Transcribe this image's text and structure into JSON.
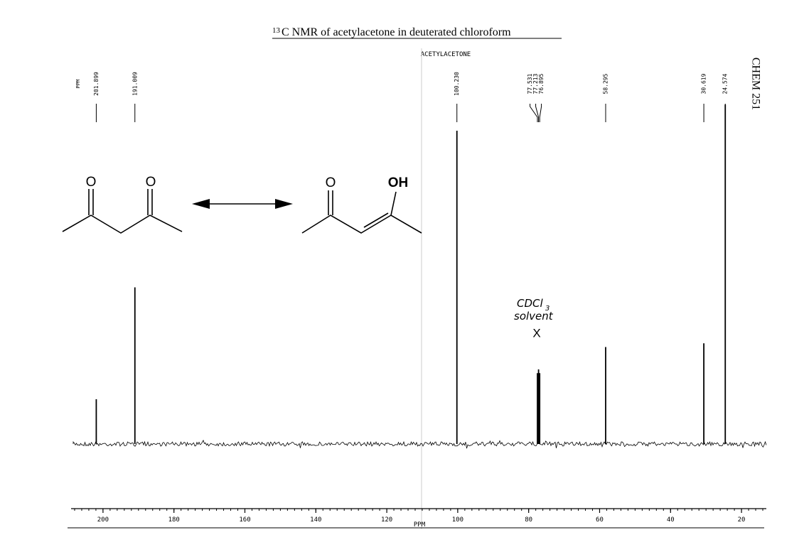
{
  "title_superscript": "13",
  "title": "C NMR of acetylacetone in deuterated chloroform",
  "side_label": "CHEM 251",
  "structures": {
    "diketo": [
      "O",
      "O"
    ],
    "enol": [
      "O",
      "OH"
    ]
  },
  "annotation": {
    "solvent_main": "CDCl",
    "solvent_sub": "3",
    "solvent_word": "solvent",
    "mark": "X"
  },
  "chart_data": {
    "type": "spectrum",
    "title": "ACETYLACETONE",
    "label_axis_title": "PPM",
    "x_label": "PPM",
    "xlim": [
      210,
      13
    ],
    "xticks": [
      200,
      180,
      160,
      140,
      120,
      100,
      80,
      60,
      40,
      20
    ],
    "ylim": [
      0,
      100
    ],
    "color": "#000000",
    "x": [
      201.899,
      191.009,
      100.23,
      77.531,
      77.213,
      76.895,
      58.295,
      30.619,
      24.574
    ],
    "value_labels_x": [
      "201.899",
      "191.009",
      "100.230",
      "77.531",
      "77.213",
      "76.895",
      "58.295",
      "30.619",
      "24.574"
    ],
    "values": [
      12,
      42,
      84,
      19,
      20,
      19,
      26,
      27,
      91
    ]
  }
}
